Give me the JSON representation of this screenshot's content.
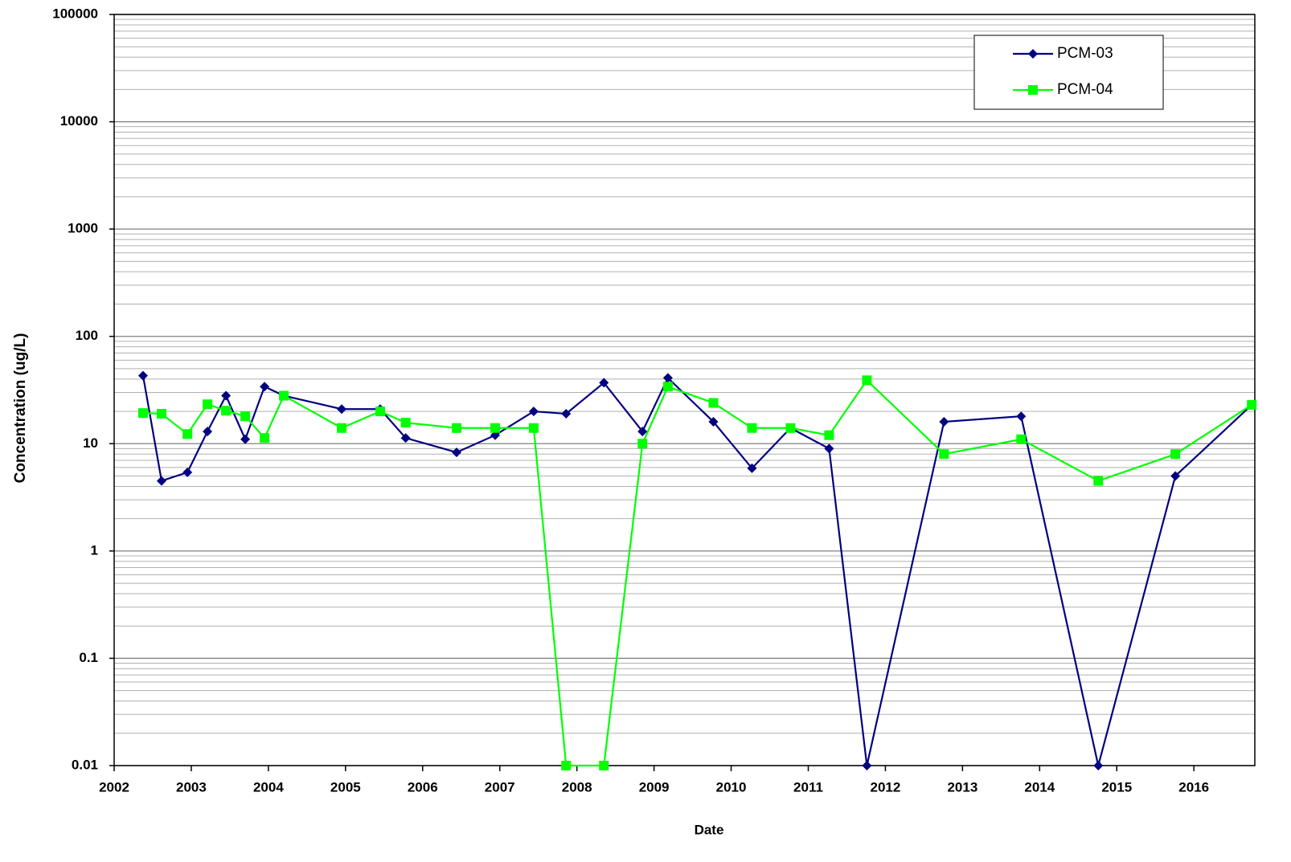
{
  "chart_data": {
    "type": "line",
    "x_label": "Date",
    "y_label": "Concentration (ug/L)",
    "x": [
      2002.375,
      2002.615,
      2002.95,
      2003.21,
      2003.45,
      2003.7,
      2003.95,
      2004.2,
      2004.95,
      2005.45,
      2005.78,
      2006.44,
      2006.94,
      2007.44,
      2007.86,
      2008.35,
      2008.85,
      2009.18,
      2009.77,
      2010.27,
      2010.77,
      2011.27,
      2011.76,
      2012.76,
      2013.76,
      2014.76,
      2015.76,
      2016.75
    ],
    "series": [
      {
        "name": "PCM-03",
        "color": "#000080",
        "marker": "diamond",
        "values": [
          43,
          4.5,
          5.4,
          13,
          28,
          11,
          34,
          28,
          21,
          21,
          11.3,
          8.3,
          12,
          20,
          19,
          37,
          13,
          41,
          16,
          5.9,
          14,
          9,
          0.01,
          16,
          18,
          0.01,
          5,
          23
        ]
      },
      {
        "name": "PCM-04",
        "color": "#00ff00",
        "marker": "square",
        "values": [
          19.3,
          19,
          12.3,
          23.3,
          20.3,
          18,
          11.3,
          28,
          14,
          20,
          15.7,
          14,
          14,
          14,
          0.01,
          0.01,
          10,
          34,
          24,
          14,
          14,
          12,
          39,
          8,
          11,
          4.5,
          8,
          23
        ]
      }
    ],
    "xlim": [
      2002,
      2016.79
    ],
    "xticks": [
      2002,
      2003,
      2004,
      2005,
      2006,
      2007,
      2008,
      2009,
      2010,
      2011,
      2012,
      2013,
      2014,
      2015,
      2016
    ],
    "ylim": [
      0.01,
      100000
    ],
    "yticks": [
      0.01,
      0.1,
      1,
      10,
      100,
      1000,
      10000,
      100000
    ],
    "yscale": "log",
    "grid": true,
    "legend": "upper right"
  }
}
